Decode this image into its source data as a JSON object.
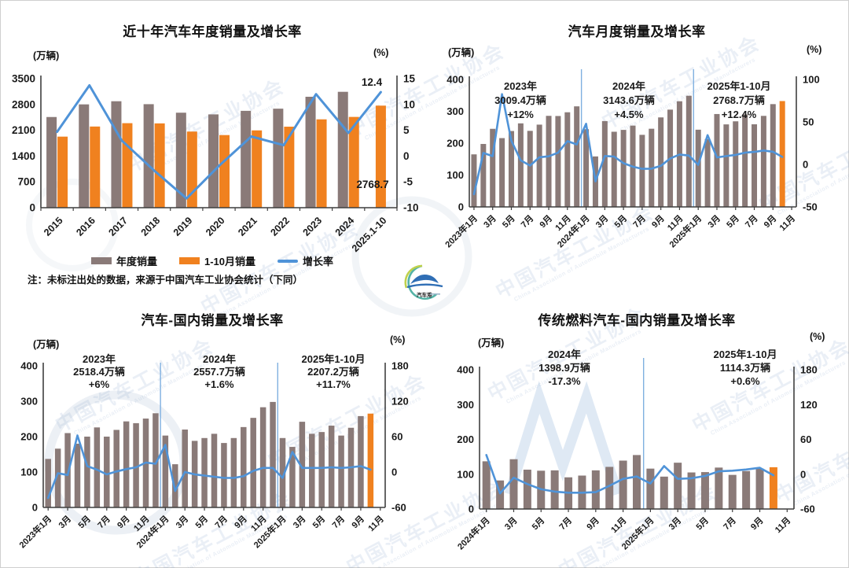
{
  "note": "注：未标注出处的数据，来源于中国汽车工业协会统计（下同）",
  "watermark": {
    "text": "中国汽车工业协会",
    "subtext": "China Association of Automobile Manufacturers"
  },
  "logo": {
    "name": "caam-media-logo",
    "caption": "汽车港"
  },
  "colors": {
    "bar_primary": "#8a7a78",
    "bar_highlight": "#f0811f",
    "line": "#4f93d8",
    "separator": "#7fb0e0",
    "axis": "#3f3f3f",
    "text": "#1a1a1a",
    "negative_annotation": "#e8250c"
  },
  "chart_data": [
    {
      "id": "annual",
      "type": "bar+line",
      "title": "近十年汽车年度销量及增长率",
      "left_unit": "(万辆)",
      "right_unit": "(%)",
      "left_axis": {
        "max": 3500,
        "ticks": [
          0,
          700,
          1400,
          2100,
          2800,
          3500
        ]
      },
      "right_axis": {
        "min": -10,
        "max": 15,
        "ticks": [
          -10,
          -5,
          0,
          5,
          10,
          15
        ]
      },
      "categories": [
        "2015",
        "2016",
        "2017",
        "2018",
        "2019",
        "2020",
        "2021",
        "2022",
        "2023",
        "2024",
        "2025.1-10"
      ],
      "series": [
        {
          "name": "年度销量",
          "type": "bar",
          "color_role": "primary",
          "values": [
            2459.8,
            2802.8,
            2887.9,
            2808.1,
            2576.9,
            2531.1,
            2627.5,
            2686.4,
            3009.4,
            3143.6,
            null
          ]
        },
        {
          "name": "1-10月销量",
          "type": "bar",
          "color_role": "highlight",
          "values": [
            1927.8,
            2201.7,
            2292.7,
            2287.1,
            2065.2,
            1969.9,
            2097.0,
            2197.5,
            2396.7,
            2462.4,
            2768.7
          ]
        },
        {
          "name": "增长率",
          "type": "line",
          "axis": "right",
          "values": [
            4.7,
            13.7,
            3.0,
            -2.8,
            -8.2,
            -1.9,
            3.8,
            2.1,
            12.0,
            4.5,
            12.4
          ]
        }
      ],
      "callouts": [
        {
          "text": "12.4"
        },
        {
          "text": "2768.7"
        }
      ],
      "has_legend": true
    },
    {
      "id": "monthly_total",
      "type": "bar+line",
      "title": "汽车月度销量及增长率",
      "left_unit": "(万辆)",
      "right_unit": "(%)",
      "left_axis": {
        "max": 400,
        "ticks": [
          0,
          100,
          200,
          300,
          400
        ]
      },
      "right_axis": {
        "min": -50,
        "max": 100,
        "ticks": [
          -50,
          0,
          50,
          100
        ]
      },
      "categories": [
        "2023年1月",
        "2月",
        "3月",
        "4月",
        "5月",
        "6月",
        "7月",
        "8月",
        "9月",
        "10月",
        "11月",
        "12月",
        "2024年1月",
        "2月",
        "3月",
        "4月",
        "5月",
        "6月",
        "7月",
        "8月",
        "9月",
        "10月",
        "11月",
        "12月",
        "2025年1月",
        "2月",
        "3月",
        "4月",
        "5月",
        "6月",
        "7月",
        "8月",
        "9月",
        "10月"
      ],
      "sales": [
        164.9,
        197.6,
        245.1,
        215.9,
        238.2,
        262.2,
        238.7,
        258.2,
        285.8,
        285.3,
        297.0,
        315.6,
        243.9,
        158.4,
        269.4,
        235.9,
        241.7,
        255.2,
        226.2,
        245.3,
        280.9,
        305.3,
        331.6,
        348.9,
        242.3,
        212.9,
        291.5,
        259.0,
        268.6,
        290.4,
        259.3,
        285.7,
        322.6,
        332.2
      ],
      "growth": [
        -35.0,
        13.5,
        9.7,
        82.7,
        27.9,
        4.8,
        -1.4,
        8.4,
        9.5,
        13.8,
        27.4,
        23.5,
        47.9,
        -19.9,
        9.9,
        9.3,
        1.5,
        -2.7,
        -5.2,
        -5.0,
        -1.7,
        7.0,
        11.7,
        10.5,
        -0.6,
        34.4,
        8.2,
        9.8,
        11.2,
        13.8,
        14.7,
        16.4,
        14.9,
        8.8
      ],
      "highlight_last": true,
      "separators": [
        12,
        24
      ],
      "x_tick_labels": [
        {
          "index": 0,
          "label": "2023年1月"
        },
        {
          "index": 2,
          "label": "3月"
        },
        {
          "index": 4,
          "label": "5月"
        },
        {
          "index": 6,
          "label": "7月"
        },
        {
          "index": 8,
          "label": "9月"
        },
        {
          "index": 10,
          "label": "11月"
        },
        {
          "index": 12,
          "label": "2024年1月"
        },
        {
          "index": 14,
          "label": "3月"
        },
        {
          "index": 16,
          "label": "5月"
        },
        {
          "index": 18,
          "label": "7月"
        },
        {
          "index": 20,
          "label": "9月"
        },
        {
          "index": 22,
          "label": "11月"
        },
        {
          "index": 24,
          "label": "2025年1月"
        },
        {
          "index": 26,
          "label": "3月"
        },
        {
          "index": 28,
          "label": "5月"
        },
        {
          "index": 30,
          "label": "7月"
        },
        {
          "index": 32,
          "label": "9月"
        },
        {
          "index": 34,
          "label": "11月"
        }
      ],
      "annotations": [
        {
          "lines": [
            {
              "text": "2023年"
            },
            {
              "text": "3009.4万辆"
            },
            {
              "text": "+12%"
            }
          ]
        },
        {
          "lines": [
            {
              "text": "2024年"
            },
            {
              "text": "3143.6万辆"
            },
            {
              "text": "+4.5%"
            }
          ]
        },
        {
          "lines": [
            {
              "text": "2025年1-10月"
            },
            {
              "text": "2768.7万辆"
            },
            {
              "text": "+12.4%"
            }
          ]
        }
      ]
    },
    {
      "id": "domestic",
      "type": "bar+line",
      "title": "汽车-国内销量及增长率",
      "left_unit": "(万辆)",
      "right_unit": "(%)",
      "left_axis": {
        "max": 400,
        "ticks": [
          0,
          100,
          200,
          300,
          400
        ]
      },
      "right_axis": {
        "min": -60,
        "max": 180,
        "ticks": [
          -60,
          0,
          60,
          120,
          180
        ]
      },
      "categories": [
        "2023年1月",
        "2月",
        "3月",
        "4月",
        "5月",
        "6月",
        "7月",
        "8月",
        "9月",
        "10月",
        "11月",
        "12月",
        "2024年1月",
        "2月",
        "3月",
        "4月",
        "5月",
        "6月",
        "7月",
        "8月",
        "9月",
        "10月",
        "11月",
        "12月",
        "2025年1月",
        "2月",
        "3月",
        "4月",
        "5月",
        "6月",
        "7月",
        "8月",
        "9月",
        "10月"
      ],
      "sales": [
        137,
        166,
        210,
        180,
        200,
        226,
        200,
        219,
        243,
        238,
        251,
        266,
        203,
        122,
        220,
        188,
        196,
        208,
        182,
        196,
        227,
        253,
        283,
        298,
        196,
        171,
        242,
        208,
        213,
        231,
        203,
        225,
        258,
        265
      ],
      "growth": [
        -44,
        -2,
        -5,
        62,
        10,
        4,
        -4,
        1,
        5,
        8,
        16,
        14,
        46,
        -32,
        0,
        -4,
        -6,
        -8,
        -10,
        -10,
        -7,
        2,
        7,
        7,
        -10,
        34,
        7,
        7,
        7,
        8,
        7,
        8,
        10,
        4
      ],
      "highlight_last": true,
      "separators": [
        12,
        24
      ],
      "x_tick_labels": [
        {
          "index": 0,
          "label": "2023年1月"
        },
        {
          "index": 2,
          "label": "3月"
        },
        {
          "index": 4,
          "label": "5月"
        },
        {
          "index": 6,
          "label": "7月"
        },
        {
          "index": 8,
          "label": "9月"
        },
        {
          "index": 10,
          "label": "11月"
        },
        {
          "index": 12,
          "label": "2024年1月"
        },
        {
          "index": 14,
          "label": "3月"
        },
        {
          "index": 16,
          "label": "5月"
        },
        {
          "index": 18,
          "label": "7月"
        },
        {
          "index": 20,
          "label": "9月"
        },
        {
          "index": 22,
          "label": "11月"
        },
        {
          "index": 24,
          "label": "2025年1月"
        },
        {
          "index": 26,
          "label": "3月"
        },
        {
          "index": 28,
          "label": "5月"
        },
        {
          "index": 30,
          "label": "7月"
        },
        {
          "index": 32,
          "label": "9月"
        },
        {
          "index": 34,
          "label": "11月"
        }
      ],
      "annotations": [
        {
          "lines": [
            {
              "text": "2023年"
            },
            {
              "text": "2518.4万辆"
            },
            {
              "text": "+6%"
            }
          ]
        },
        {
          "lines": [
            {
              "text": "2024年"
            },
            {
              "text": "2557.7万辆"
            },
            {
              "text": "+1.6%"
            }
          ]
        },
        {
          "lines": [
            {
              "text": "2025年1-10月"
            },
            {
              "text": "2207.2万辆"
            },
            {
              "text": "+11.7%"
            }
          ]
        }
      ]
    },
    {
      "id": "fuel_domestic",
      "type": "bar+line",
      "title": "传统燃料汽车-国内销量及增长率",
      "left_unit": "(万辆)",
      "right_unit": "(%)",
      "left_axis": {
        "max": 400,
        "ticks": [
          0,
          100,
          200,
          300,
          400
        ]
      },
      "right_axis": {
        "min": -60,
        "max": 180,
        "ticks": [
          -60,
          0,
          60,
          120,
          180
        ]
      },
      "categories": [
        "2024年1月",
        "2月",
        "3月",
        "4月",
        "5月",
        "6月",
        "7月",
        "8月",
        "9月",
        "10月",
        "11月",
        "12月",
        "2025年1月",
        "2月",
        "3月",
        "4月",
        "5月",
        "6月",
        "7月",
        "8月",
        "9月",
        "10月"
      ],
      "sales": [
        137,
        82,
        143,
        113,
        110,
        111,
        91,
        96,
        111,
        121,
        139,
        155,
        116,
        93,
        133,
        105,
        106,
        119,
        98,
        109,
        116,
        120
      ],
      "growth": [
        33,
        -33,
        -6,
        -17,
        -26,
        -30,
        -32,
        -32,
        -31,
        -20,
        -8,
        -4,
        -16,
        14,
        -8,
        -7,
        -3,
        5,
        6,
        8,
        11,
        -2
      ],
      "highlight_last": true,
      "separators": [
        12
      ],
      "x_tick_labels": [
        {
          "index": 0,
          "label": "2024年1月"
        },
        {
          "index": 2,
          "label": "3月"
        },
        {
          "index": 4,
          "label": "5月"
        },
        {
          "index": 6,
          "label": "7月"
        },
        {
          "index": 8,
          "label": "9月"
        },
        {
          "index": 10,
          "label": "11月"
        },
        {
          "index": 12,
          "label": "2025年1月"
        },
        {
          "index": 14,
          "label": "3月"
        },
        {
          "index": 16,
          "label": "5月"
        },
        {
          "index": 18,
          "label": "7月"
        },
        {
          "index": 20,
          "label": "9月"
        },
        {
          "index": 22,
          "label": "11月"
        }
      ],
      "annotations": [
        {
          "lines": [
            {
              "text": "2024年"
            },
            {
              "text": "1398.9万辆"
            },
            {
              "text": "-17.3%",
              "color": "#e8250c"
            }
          ]
        },
        {
          "lines": [
            {
              "text": "2025年1-10月"
            },
            {
              "text": "1114.3万辆"
            },
            {
              "text": "+0.6%"
            }
          ]
        }
      ]
    }
  ]
}
